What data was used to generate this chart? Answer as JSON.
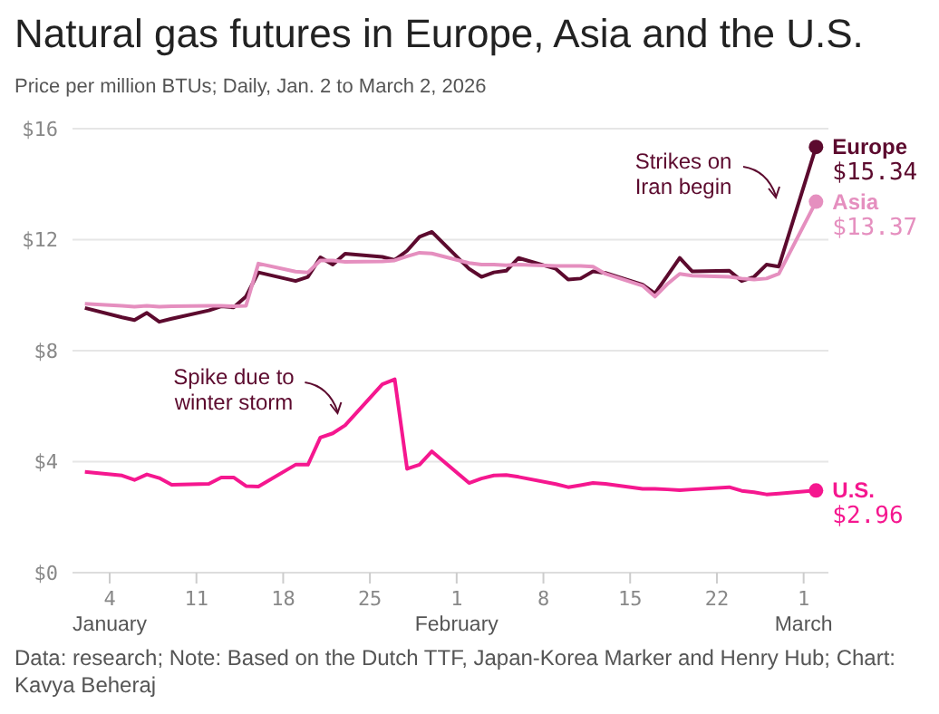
{
  "chart_data": {
    "type": "line",
    "title": "Natural gas futures in Europe, Asia and the U.S.",
    "subtitle": "Price per million BTUs; Daily, Jan. 2 to March 2, 2026",
    "x": [
      "2026-01-02",
      "2026-01-05",
      "2026-01-06",
      "2026-01-07",
      "2026-01-08",
      "2026-01-09",
      "2026-01-12",
      "2026-01-13",
      "2026-01-14",
      "2026-01-15",
      "2026-01-16",
      "2026-01-19",
      "2026-01-20",
      "2026-01-21",
      "2026-01-22",
      "2026-01-23",
      "2026-01-26",
      "2026-01-27",
      "2026-01-28",
      "2026-01-29",
      "2026-01-30",
      "2026-02-02",
      "2026-02-03",
      "2026-02-04",
      "2026-02-05",
      "2026-02-06",
      "2026-02-09",
      "2026-02-10",
      "2026-02-11",
      "2026-02-12",
      "2026-02-13",
      "2026-02-16",
      "2026-02-17",
      "2026-02-18",
      "2026-02-19",
      "2026-02-20",
      "2026-02-23",
      "2026-02-24",
      "2026-02-25",
      "2026-02-26",
      "2026-02-27",
      "2026-03-02"
    ],
    "series": [
      {
        "name": "Europe",
        "color": "#5c0a2e",
        "values": [
          9.54,
          9.2,
          9.1,
          9.36,
          9.04,
          9.15,
          9.45,
          9.6,
          9.56,
          9.95,
          10.82,
          10.51,
          10.66,
          11.36,
          11.1,
          11.49,
          11.38,
          11.27,
          11.6,
          12.1,
          12.28,
          10.95,
          10.66,
          10.82,
          10.88,
          11.34,
          10.95,
          10.56,
          10.6,
          10.86,
          10.8,
          10.38,
          10.06,
          10.7,
          11.34,
          10.86,
          10.88,
          10.51,
          10.66,
          11.1,
          11.03,
          15.34
        ],
        "value_labels": [
          null,
          null,
          null,
          null,
          null,
          null,
          null,
          null,
          null,
          null,
          null,
          null,
          null,
          null,
          null,
          null,
          null,
          null,
          null,
          null,
          null,
          null,
          null,
          null,
          null,
          null,
          null,
          null,
          null,
          null,
          null,
          null,
          null,
          null,
          null,
          null,
          null,
          null,
          null,
          null,
          null,
          "$15.34"
        ]
      },
      {
        "name": "Asia",
        "color": "#e58fbf",
        "values": [
          9.69,
          9.62,
          9.58,
          9.62,
          9.58,
          9.6,
          9.62,
          9.62,
          9.6,
          9.62,
          11.14,
          10.85,
          10.82,
          11.25,
          11.25,
          11.2,
          11.22,
          11.25,
          11.4,
          11.53,
          11.5,
          11.16,
          11.1,
          11.1,
          11.08,
          11.1,
          11.05,
          11.05,
          11.05,
          11.03,
          10.77,
          10.34,
          9.95,
          10.4,
          10.77,
          10.7,
          10.66,
          10.6,
          10.56,
          10.6,
          10.77,
          13.37
        ],
        "value_labels": [
          null,
          null,
          null,
          null,
          null,
          null,
          null,
          null,
          null,
          null,
          null,
          null,
          null,
          null,
          null,
          null,
          null,
          null,
          null,
          null,
          null,
          null,
          null,
          null,
          null,
          null,
          null,
          null,
          null,
          null,
          null,
          null,
          null,
          null,
          null,
          null,
          null,
          null,
          null,
          null,
          null,
          "$13.37"
        ]
      },
      {
        "name": "U.S.",
        "color": "#f5178f",
        "values": [
          3.63,
          3.5,
          3.34,
          3.54,
          3.41,
          3.17,
          3.2,
          3.43,
          3.43,
          3.12,
          3.1,
          3.89,
          3.89,
          4.87,
          5.02,
          5.31,
          6.79,
          6.97,
          3.74,
          3.89,
          4.37,
          3.23,
          3.39,
          3.5,
          3.52,
          3.45,
          3.19,
          3.08,
          3.15,
          3.23,
          3.2,
          3.02,
          3.02,
          3.0,
          2.97,
          3.0,
          3.08,
          2.95,
          2.9,
          2.82,
          2.85,
          2.96
        ],
        "value_labels": [
          null,
          null,
          null,
          null,
          null,
          null,
          null,
          null,
          null,
          null,
          null,
          null,
          null,
          null,
          null,
          null,
          null,
          null,
          null,
          null,
          null,
          null,
          null,
          null,
          null,
          null,
          null,
          null,
          null,
          null,
          null,
          null,
          null,
          null,
          null,
          null,
          null,
          null,
          null,
          null,
          null,
          "$2.96"
        ]
      }
    ],
    "xlim": [
      "2026-01-01",
      "2026-03-03"
    ],
    "xticks": [
      {
        "value": "2026-01-04",
        "label": "4\nJanuary"
      },
      {
        "value": "2026-01-11",
        "label": "11"
      },
      {
        "value": "2026-01-18",
        "label": "18"
      },
      {
        "value": "2026-01-25",
        "label": "25"
      },
      {
        "value": "2026-02-01",
        "label": "1\nFebruary"
      },
      {
        "value": "2026-02-08",
        "label": "8"
      },
      {
        "value": "2026-02-15",
        "label": "15"
      },
      {
        "value": "2026-02-22",
        "label": "22"
      },
      {
        "value": "2026-03-01",
        "label": "1\nMarch"
      }
    ],
    "ylim": [
      0,
      16
    ],
    "yticks": [
      {
        "value": 0,
        "label": "$0"
      },
      {
        "value": 4,
        "label": "$4"
      },
      {
        "value": 8,
        "label": "$8"
      },
      {
        "value": 12,
        "label": "$12"
      },
      {
        "value": 16,
        "label": "$16"
      }
    ],
    "grid": "y",
    "legend": false,
    "annotations": [
      "Strikes on\nIran begin",
      "Spike due to\nwinter storm",
      "Data: research; Note: Based on the Dutch TTF, Japan-Korea Marker and Henry Hub; Chart: Kavya Beheraj"
    ]
  }
}
